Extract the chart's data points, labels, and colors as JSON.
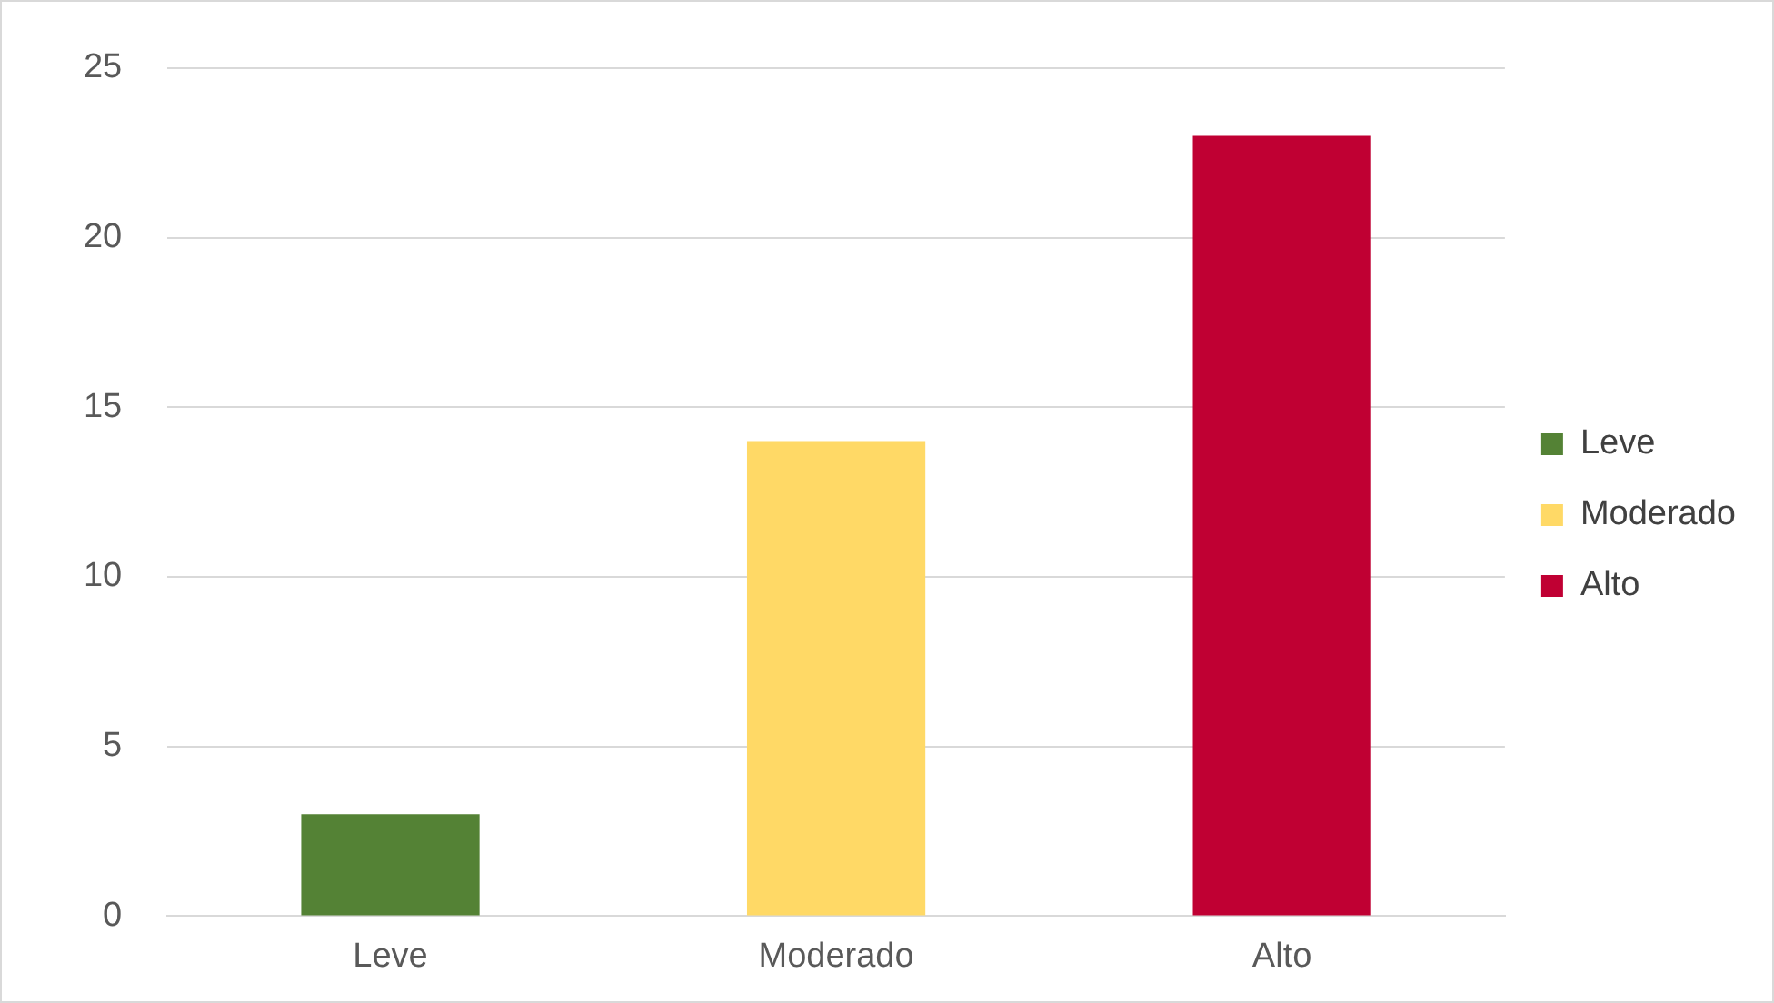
{
  "chart_data": {
    "type": "bar",
    "categories": [
      "Leve",
      "Moderado",
      "Alto"
    ],
    "series": [
      {
        "name": "Leve",
        "color": "#548235",
        "values": [
          3,
          null,
          null
        ]
      },
      {
        "name": "Moderado",
        "color": "#ffd966",
        "values": [
          null,
          14,
          null
        ]
      },
      {
        "name": "Alto",
        "color": "#c00033",
        "values": [
          null,
          null,
          23
        ]
      }
    ],
    "ylim": [
      0,
      25
    ],
    "yticks": [
      0,
      5,
      10,
      15,
      20,
      25
    ],
    "grid": "y",
    "legend": "right"
  }
}
